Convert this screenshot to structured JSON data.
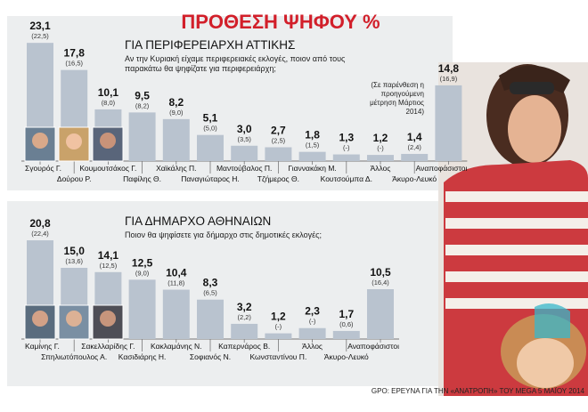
{
  "header": {
    "title": "ΠΡΟΘΕΣΗ ΨΗΦΟΥ %"
  },
  "colors": {
    "title": "#d21f2a",
    "bar": "#b9c3cf",
    "panel": "#eceeef",
    "divider": "#ffffff",
    "photo_stripe_red": "#cc3a3f"
  },
  "source_note": "GPO: ΕΡΕΥΝΑ ΓΙΑ ΤΗΝ «ΑΝΑΤΡΟΠΗ» ΤΟΥ MEGA 5 ΜΑΪΟΥ 2014",
  "chart_data": [
    {
      "type": "bar",
      "title": "ΓΙΑ ΠΕΡΙΦΕΡΕΙΑΡΧΗ ΑΤΤΙΚΗΣ",
      "subtitle": "Αν την Κυριακή είχαμε περιφερειακές εκλογές, ποιον από τους παρακάτω θα ψηφίζατε για περιφερειάρχη;",
      "note": "(Σε παρένθεση η προηγούμενη μέτρηση Μάρτιος 2014)",
      "categories": [
        "Σγουρός Γ.",
        "Δούρου Ρ.",
        "Κουμουτσάκος Γ.",
        "Παφίλης Θ.",
        "Χαϊκάλης Π.",
        "Παναγιώταρος Η.",
        "Μαντούβαλος Π.",
        "Τζήμερος Θ.",
        "Γιαννακάκη Μ.",
        "Κουτσούμπα Δ.",
        "Άλλος",
        "Άκυρο-Λευκό",
        "Αναποφάσιστοι"
      ],
      "values": [
        23.1,
        17.8,
        10.1,
        9.5,
        8.2,
        5.1,
        3.0,
        2.7,
        1.8,
        1.3,
        1.2,
        1.4,
        14.8
      ],
      "value_labels": [
        "23,1",
        "17,8",
        "10,1",
        "9,5",
        "8,2",
        "5,1",
        "3,0",
        "2,7",
        "1,8",
        "1,3",
        "1,2",
        "1,4",
        "14,8"
      ],
      "previous_labels": [
        "(22,5)",
        "(16,5)",
        "(8,0)",
        "(8,2)",
        "(9,0)",
        "(5,0)",
        "(3,5)",
        "(2,5)",
        "(1,5)",
        "(-)",
        "(-)",
        "(2,4)",
        "(16,9)"
      ],
      "ylim": [
        0,
        24
      ]
    },
    {
      "type": "bar",
      "title": "ΓΙΑ ΔΗΜΑΡΧΟ ΑΘΗΝΑΙΩΝ",
      "subtitle": "Ποιον θα ψηφίσετε για δήμαρχο στις δημοτικές εκλογές;",
      "categories": [
        "Καμίνης Γ.",
        "Σπηλιωτόπουλος Α.",
        "Σακελλαρίδης Γ.",
        "Κασιδιάρης Η.",
        "Κακλαμάνης Ν.",
        "Σοφιανός Ν.",
        "Καπερνάρος Β.",
        "Κωνσταντίνου Π.",
        "Άλλος",
        "Άκυρο-Λευκό",
        "Αναποφάσιστοι"
      ],
      "values": [
        20.8,
        15.0,
        14.1,
        12.5,
        10.4,
        8.3,
        3.2,
        1.2,
        2.3,
        1.7,
        10.5
      ],
      "value_labels": [
        "20,8",
        "15,0",
        "14,1",
        "12,5",
        "10,4",
        "8,3",
        "3,2",
        "1,2",
        "2,3",
        "1,7",
        "10,5"
      ],
      "previous_labels": [
        "(22,4)",
        "(13,6)",
        "(12,5)",
        "(9,0)",
        "(11,8)",
        "(6,5)",
        "(2,2)",
        "(-)",
        "(-)",
        "(0,6)",
        "(16,4)"
      ],
      "ylim": [
        0,
        24
      ]
    }
  ]
}
